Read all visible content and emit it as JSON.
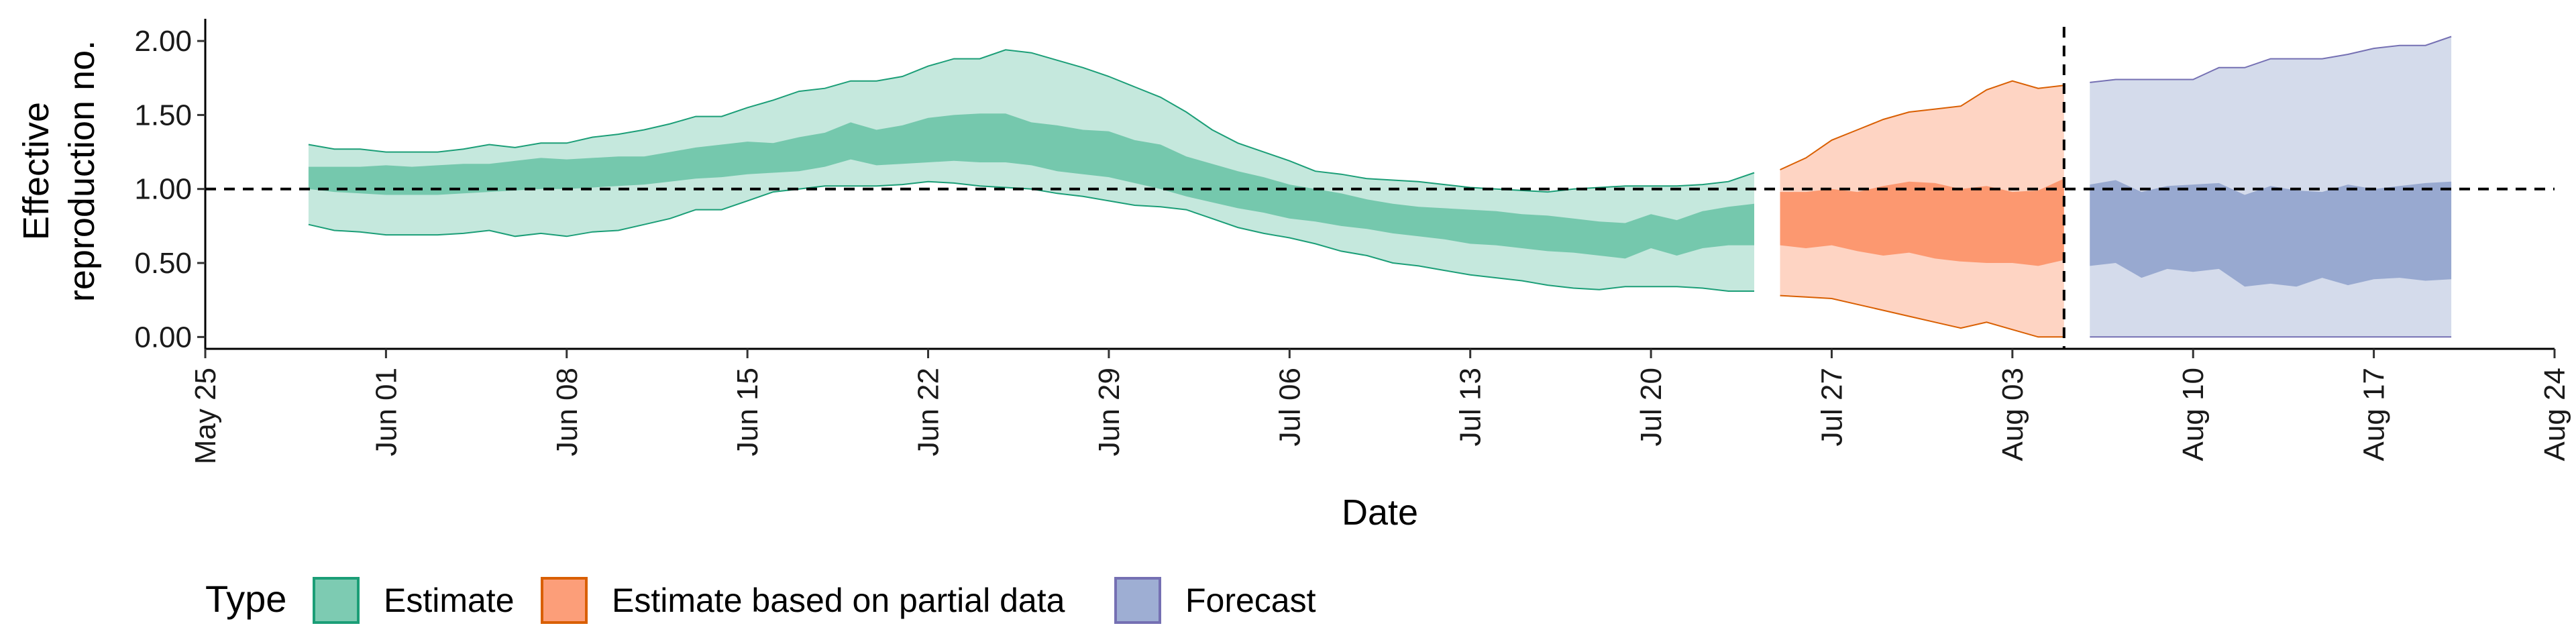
{
  "chart_data": {
    "type": "area",
    "xlabel": "Date",
    "ylabel": [
      "Effective",
      "reproduction no."
    ],
    "xlim": [
      "2020-05-25",
      "2020-08-24"
    ],
    "ylim": [
      -0.08,
      2.15
    ],
    "x_ticks": [
      "2020-05-25",
      "2020-06-01",
      "2020-06-08",
      "2020-06-15",
      "2020-06-22",
      "2020-06-29",
      "2020-07-06",
      "2020-07-13",
      "2020-07-20",
      "2020-07-27",
      "2020-08-03",
      "2020-08-10",
      "2020-08-17",
      "2020-08-24"
    ],
    "x_tick_labels": [
      "May 25",
      "Jun 01",
      "Jun 08",
      "Jun 15",
      "Jun 22",
      "Jun 29",
      "Jul 06",
      "Jul 13",
      "Jul 20",
      "Jul 27",
      "Aug 03",
      "Aug 10",
      "Aug 17",
      "Aug 24"
    ],
    "y_ticks": [
      0,
      0.5,
      1.0,
      1.5,
      2.0
    ],
    "y_tick_labels": [
      "0.00",
      "0.50",
      "1.00",
      "1.50",
      "2.00"
    ],
    "reference_line": {
      "y": 1.0,
      "style": "dashed"
    },
    "forecast_start_line": {
      "x": "2020-08-05",
      "style": "dashed"
    },
    "legend": {
      "title": "Type",
      "position": "bottom-left",
      "entries": [
        "Estimate",
        "Estimate based on partial data",
        "Forecast"
      ]
    },
    "grid": false,
    "series": [
      {
        "name": "Estimate",
        "fill": "#66c2a5",
        "stroke": "#1b9e77",
        "dates": [
          "2020-05-29",
          "2020-05-30",
          "2020-05-31",
          "2020-06-01",
          "2020-06-02",
          "2020-06-03",
          "2020-06-04",
          "2020-06-05",
          "2020-06-06",
          "2020-06-07",
          "2020-06-08",
          "2020-06-09",
          "2020-06-10",
          "2020-06-11",
          "2020-06-12",
          "2020-06-13",
          "2020-06-14",
          "2020-06-15",
          "2020-06-16",
          "2020-06-17",
          "2020-06-18",
          "2020-06-19",
          "2020-06-20",
          "2020-06-21",
          "2020-06-22",
          "2020-06-23",
          "2020-06-24",
          "2020-06-25",
          "2020-06-26",
          "2020-06-27",
          "2020-06-28",
          "2020-06-29",
          "2020-06-30",
          "2020-07-01",
          "2020-07-02",
          "2020-07-03",
          "2020-07-04",
          "2020-07-05",
          "2020-07-06",
          "2020-07-07",
          "2020-07-08",
          "2020-07-09",
          "2020-07-10",
          "2020-07-11",
          "2020-07-12",
          "2020-07-13",
          "2020-07-14",
          "2020-07-15",
          "2020-07-16",
          "2020-07-17",
          "2020-07-18",
          "2020-07-19",
          "2020-07-20",
          "2020-07-21",
          "2020-07-22",
          "2020-07-23",
          "2020-07-24"
        ],
        "outer_upper": [
          1.3,
          1.27,
          1.27,
          1.25,
          1.25,
          1.25,
          1.27,
          1.3,
          1.28,
          1.31,
          1.31,
          1.35,
          1.37,
          1.4,
          1.44,
          1.49,
          1.49,
          1.55,
          1.6,
          1.66,
          1.68,
          1.73,
          1.73,
          1.76,
          1.83,
          1.88,
          1.88,
          1.94,
          1.92,
          1.87,
          1.82,
          1.76,
          1.69,
          1.62,
          1.52,
          1.4,
          1.31,
          1.25,
          1.19,
          1.12,
          1.1,
          1.07,
          1.06,
          1.05,
          1.03,
          1.01,
          1.0,
          0.99,
          0.98,
          1.0,
          1.01,
          1.02,
          1.02,
          1.02,
          1.03,
          1.05,
          1.11
        ],
        "inner_upper": [
          1.15,
          1.15,
          1.15,
          1.16,
          1.15,
          1.16,
          1.17,
          1.17,
          1.19,
          1.21,
          1.2,
          1.21,
          1.22,
          1.22,
          1.25,
          1.28,
          1.3,
          1.32,
          1.31,
          1.35,
          1.38,
          1.45,
          1.4,
          1.43,
          1.48,
          1.5,
          1.51,
          1.51,
          1.45,
          1.43,
          1.4,
          1.39,
          1.33,
          1.3,
          1.22,
          1.17,
          1.12,
          1.08,
          1.03,
          1.0,
          0.97,
          0.93,
          0.9,
          0.88,
          0.87,
          0.86,
          0.85,
          0.83,
          0.82,
          0.8,
          0.78,
          0.77,
          0.83,
          0.79,
          0.85,
          0.88,
          0.9
        ],
        "inner_lower": [
          1.0,
          0.98,
          0.97,
          0.96,
          0.96,
          0.96,
          0.97,
          0.98,
          0.99,
          1.0,
          1.0,
          1.01,
          1.02,
          1.03,
          1.05,
          1.07,
          1.08,
          1.1,
          1.11,
          1.12,
          1.15,
          1.2,
          1.16,
          1.17,
          1.18,
          1.19,
          1.18,
          1.18,
          1.16,
          1.12,
          1.1,
          1.08,
          1.04,
          1.0,
          0.95,
          0.91,
          0.87,
          0.84,
          0.8,
          0.78,
          0.75,
          0.73,
          0.7,
          0.68,
          0.66,
          0.63,
          0.62,
          0.6,
          0.58,
          0.57,
          0.55,
          0.53,
          0.6,
          0.55,
          0.6,
          0.62,
          0.62
        ],
        "outer_lower": [
          0.76,
          0.72,
          0.71,
          0.69,
          0.69,
          0.69,
          0.7,
          0.72,
          0.68,
          0.7,
          0.68,
          0.71,
          0.72,
          0.76,
          0.8,
          0.86,
          0.86,
          0.92,
          0.98,
          1.0,
          1.02,
          1.02,
          1.02,
          1.03,
          1.05,
          1.04,
          1.02,
          1.01,
          1.0,
          0.97,
          0.95,
          0.92,
          0.89,
          0.88,
          0.86,
          0.8,
          0.74,
          0.7,
          0.67,
          0.63,
          0.58,
          0.55,
          0.5,
          0.48,
          0.45,
          0.42,
          0.4,
          0.38,
          0.35,
          0.33,
          0.32,
          0.34,
          0.34,
          0.34,
          0.33,
          0.31,
          0.31
        ]
      },
      {
        "name": "Estimate based on partial data",
        "fill": "#fc8d62",
        "stroke": "#d95f02",
        "dates": [
          "2020-07-25",
          "2020-07-26",
          "2020-07-27",
          "2020-07-28",
          "2020-07-29",
          "2020-07-30",
          "2020-07-31",
          "2020-08-01",
          "2020-08-02",
          "2020-08-03",
          "2020-08-04",
          "2020-08-05"
        ],
        "outer_upper": [
          1.13,
          1.21,
          1.33,
          1.4,
          1.47,
          1.52,
          1.54,
          1.56,
          1.67,
          1.73,
          1.68,
          1.7
        ],
        "inner_upper": [
          0.98,
          0.98,
          1.0,
          0.98,
          1.02,
          1.05,
          1.04,
          1.0,
          1.02,
          0.98,
          0.99,
          1.07
        ],
        "inner_lower": [
          0.62,
          0.6,
          0.62,
          0.58,
          0.55,
          0.57,
          0.53,
          0.51,
          0.5,
          0.5,
          0.48,
          0.52
        ],
        "outer_lower": [
          0.28,
          0.27,
          0.26,
          0.22,
          0.18,
          0.14,
          0.1,
          0.06,
          0.1,
          0.05,
          0.0,
          0.0
        ]
      },
      {
        "name": "Forecast",
        "fill": "#8da0cb",
        "stroke": "#7570b3",
        "dates": [
          "2020-08-06",
          "2020-08-07",
          "2020-08-08",
          "2020-08-09",
          "2020-08-10",
          "2020-08-11",
          "2020-08-12",
          "2020-08-13",
          "2020-08-14",
          "2020-08-15",
          "2020-08-16",
          "2020-08-17",
          "2020-08-18",
          "2020-08-19",
          "2020-08-20"
        ],
        "outer_upper": [
          1.72,
          1.74,
          1.74,
          1.74,
          1.74,
          1.82,
          1.82,
          1.88,
          1.88,
          1.88,
          1.91,
          1.95,
          1.97,
          1.97,
          2.03
        ],
        "inner_upper": [
          1.03,
          1.06,
          0.98,
          1.02,
          1.03,
          1.04,
          0.96,
          1.02,
          0.99,
          0.98,
          1.03,
          1.0,
          1.02,
          1.04,
          1.05
        ],
        "inner_lower": [
          0.48,
          0.5,
          0.4,
          0.46,
          0.44,
          0.46,
          0.34,
          0.36,
          0.34,
          0.4,
          0.35,
          0.39,
          0.4,
          0.38,
          0.39
        ],
        "outer_lower": [
          0.0,
          0.0,
          0.0,
          0.0,
          0.0,
          0.0,
          0.0,
          0.0,
          0.0,
          0.0,
          0.0,
          0.0,
          0.0,
          0.0,
          0.0
        ]
      }
    ]
  }
}
